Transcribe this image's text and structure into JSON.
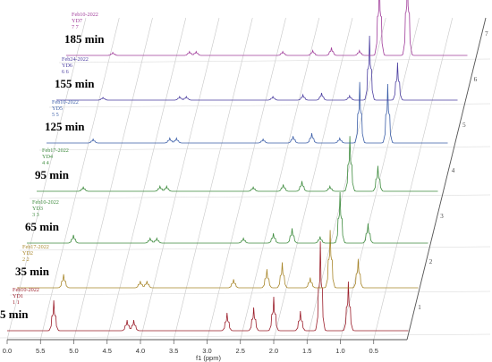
{
  "chart_data": {
    "type": "line",
    "x_axis": {
      "label": "f1 (ppm)",
      "range": [
        6.0,
        0.0
      ],
      "ticks": [
        "0.0",
        "5.5",
        "5.0",
        "4.5",
        "4.0",
        "3.5",
        "3.0",
        "2.5",
        "2.0",
        "1.5",
        "1.0",
        "0.5"
      ]
    },
    "depth_axis_ticks": [
      "1",
      "2",
      "3",
      "4",
      "5",
      "6",
      "7"
    ],
    "grid": true,
    "series": [
      {
        "time": "5 min",
        "date": "Feb10-2022",
        "sample": "YD1",
        "index": "1  1",
        "color": "#9b1d2a",
        "peaks": [
          [
            5.3,
            0.34
          ],
          [
            4.2,
            0.12
          ],
          [
            4.1,
            0.12
          ],
          [
            2.7,
            0.2
          ],
          [
            2.3,
            0.26
          ],
          [
            2.0,
            0.38
          ],
          [
            1.6,
            0.22
          ],
          [
            1.3,
            1.0
          ],
          [
            0.88,
            0.55
          ]
        ]
      },
      {
        "time": "35 min",
        "date": "Feb17-2022",
        "sample": "YD2",
        "index": "2  2",
        "color": "#a8862a",
        "peaks": [
          [
            5.3,
            0.16
          ],
          [
            4.15,
            0.08
          ],
          [
            4.05,
            0.08
          ],
          [
            2.75,
            0.1
          ],
          [
            2.25,
            0.22
          ],
          [
            2.02,
            0.3
          ],
          [
            1.6,
            0.12
          ],
          [
            1.3,
            0.68
          ],
          [
            0.88,
            0.34
          ]
        ]
      },
      {
        "time": "65 min",
        "date": "Feb10-2022",
        "sample": "YD3",
        "index": "3  3",
        "color": "#3d8b3d",
        "peaks": [
          [
            5.3,
            0.1
          ],
          [
            4.15,
            0.06
          ],
          [
            4.05,
            0.06
          ],
          [
            2.75,
            0.06
          ],
          [
            2.3,
            0.12
          ],
          [
            2.02,
            0.18
          ],
          [
            1.6,
            0.08
          ],
          [
            1.3,
            0.62
          ],
          [
            0.88,
            0.24
          ]
        ]
      },
      {
        "time": "95 min",
        "date": "Feb17-2022",
        "sample": "YD4",
        "index": "4  4",
        "color": "#3d8b3d",
        "peaks": [
          [
            5.3,
            0.05
          ],
          [
            4.15,
            0.06
          ],
          [
            4.05,
            0.06
          ],
          [
            2.75,
            0.05
          ],
          [
            2.3,
            0.08
          ],
          [
            2.02,
            0.12
          ],
          [
            1.6,
            0.06
          ],
          [
            1.3,
            0.65
          ],
          [
            0.88,
            0.3
          ]
        ]
      },
      {
        "time": "125 min",
        "date": "Feb10-2022",
        "sample": "YD5",
        "index": "5  5",
        "color": "#3b5ea8",
        "peaks": [
          [
            5.3,
            0.04
          ],
          [
            4.15,
            0.05
          ],
          [
            4.05,
            0.05
          ],
          [
            2.75,
            0.04
          ],
          [
            2.3,
            0.07
          ],
          [
            2.02,
            0.1
          ],
          [
            1.6,
            0.05
          ],
          [
            1.3,
            0.62
          ],
          [
            0.88,
            0.6
          ]
        ]
      },
      {
        "time": "155 min",
        "date": "Feb24-2022",
        "sample": "YD6",
        "index": "6  6",
        "color": "#4b3ea0",
        "peaks": [
          [
            5.3,
            0.03
          ],
          [
            4.15,
            0.04
          ],
          [
            4.05,
            0.04
          ],
          [
            2.75,
            0.04
          ],
          [
            2.3,
            0.06
          ],
          [
            2.02,
            0.08
          ],
          [
            1.6,
            0.05
          ],
          [
            1.3,
            0.72
          ],
          [
            0.88,
            0.42
          ]
        ]
      },
      {
        "time": "185 min",
        "date": "Feb10-2022",
        "sample": "YD7",
        "index": "7  7",
        "color": "#a03c9a",
        "peaks": [
          [
            5.3,
            0.03
          ],
          [
            4.15,
            0.04
          ],
          [
            4.05,
            0.04
          ],
          [
            2.75,
            0.04
          ],
          [
            2.3,
            0.05
          ],
          [
            2.02,
            0.08
          ],
          [
            1.6,
            0.05
          ],
          [
            1.3,
            0.82
          ],
          [
            0.88,
            0.9
          ]
        ]
      }
    ]
  }
}
